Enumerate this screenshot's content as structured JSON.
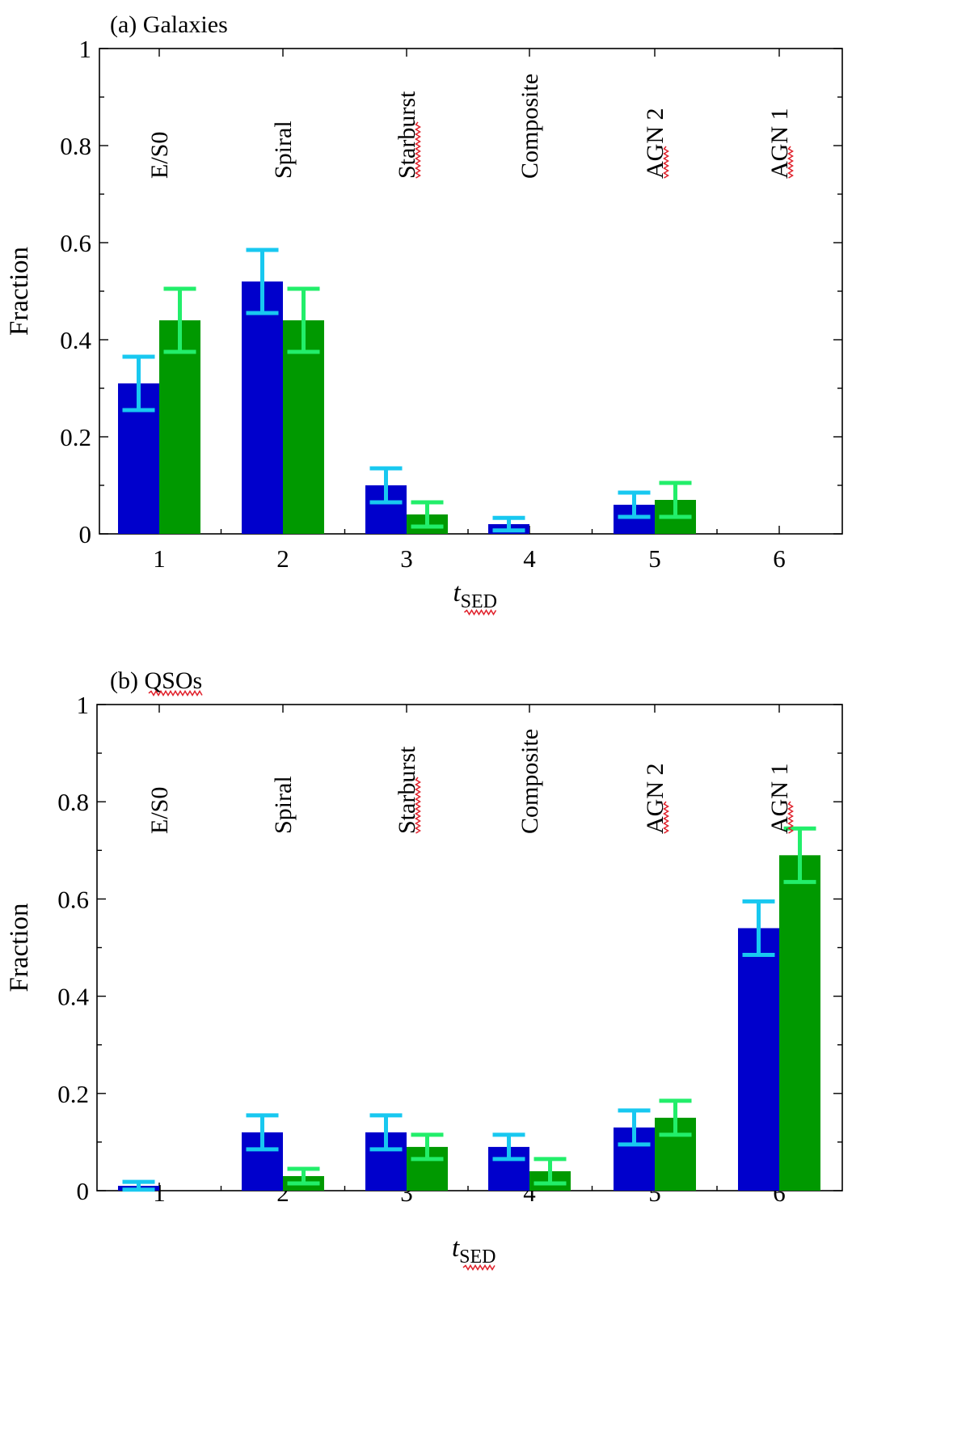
{
  "chart_data": [
    {
      "type": "bar",
      "panel_title": "(a) Galaxies",
      "xlabel": {
        "main": "t",
        "sub": "SED"
      },
      "ylabel": "Fraction",
      "ylim": [
        0,
        1
      ],
      "yticks": [
        0,
        0.2,
        0.4,
        0.6,
        0.8,
        1
      ],
      "ytick_labels": [
        "0",
        "0.2",
        "0.4",
        "0.6",
        "0.8",
        "1"
      ],
      "categories": [
        "1",
        "2",
        "3",
        "4",
        "5",
        "6"
      ],
      "class_labels": [
        "E/S0",
        "Spiral",
        "Starburst",
        "Composite",
        "AGN 2",
        "AGN 1"
      ],
      "series": [
        {
          "name": "blue",
          "color": "#0000cc",
          "error_color": "#18c8f0",
          "values": [
            0.31,
            0.52,
            0.1,
            0.02,
            0.06,
            0
          ],
          "errors": [
            0.055,
            0.065,
            0.035,
            0.013,
            0.025,
            0
          ]
        },
        {
          "name": "green",
          "color": "#009900",
          "error_color": "#22ee6a",
          "values": [
            0.44,
            0.44,
            0.04,
            0,
            0.07,
            0
          ],
          "errors": [
            0.065,
            0.065,
            0.025,
            0,
            0.035,
            0
          ]
        }
      ]
    },
    {
      "type": "bar",
      "panel_title": "(b) QSOs",
      "xlabel": {
        "main": "t",
        "sub": "SED"
      },
      "ylabel": "Fraction",
      "ylim": [
        0,
        1
      ],
      "yticks": [
        0,
        0.2,
        0.4,
        0.6,
        0.8,
        1
      ],
      "ytick_labels": [
        "0",
        "0.2",
        "0.4",
        "0.6",
        "0.8",
        "1"
      ],
      "categories": [
        "1",
        "2",
        "3",
        "4",
        "5",
        "6"
      ],
      "class_labels": [
        "E/S0",
        "Spiral",
        "Starburst",
        "Composite",
        "AGN 2",
        "AGN 1"
      ],
      "series": [
        {
          "name": "blue",
          "color": "#0000cc",
          "error_color": "#18c8f0",
          "values": [
            0.01,
            0.12,
            0.12,
            0.09,
            0.13,
            0.54
          ],
          "errors": [
            0.008,
            0.035,
            0.035,
            0.025,
            0.035,
            0.055
          ]
        },
        {
          "name": "green",
          "color": "#009900",
          "error_color": "#22ee6a",
          "values": [
            0,
            0.03,
            0.09,
            0.04,
            0.15,
            0.69
          ],
          "errors": [
            0,
            0.015,
            0.025,
            0.025,
            0.035,
            0.055
          ]
        }
      ]
    }
  ]
}
